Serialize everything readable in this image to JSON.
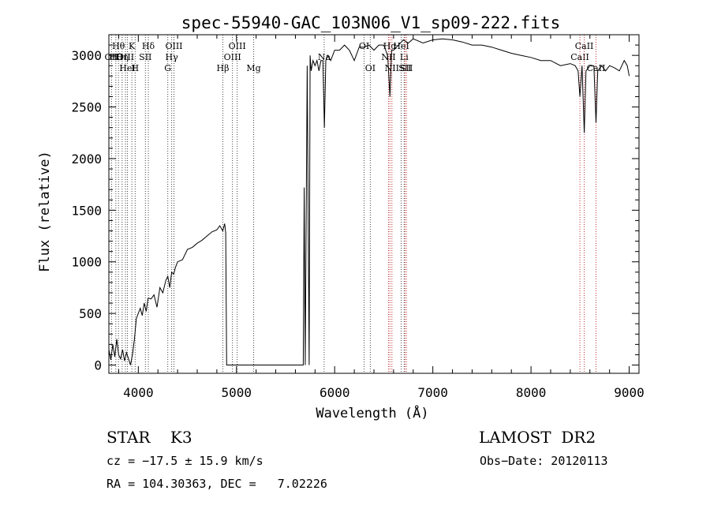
{
  "chart_data": {
    "type": "line",
    "title": "spec-55940-GAC_103N06_V1_sp09-222.fits",
    "xlabel": "Wavelength (Å)",
    "ylabel": "Flux (relative)",
    "xlim": [
      3700,
      9100
    ],
    "ylim": [
      -80,
      3200
    ],
    "x_ticks": [
      4000,
      5000,
      6000,
      7000,
      8000,
      9000
    ],
    "y_ticks": [
      0,
      500,
      1000,
      1500,
      2000,
      2500,
      3000
    ],
    "grid": false,
    "series": [
      {
        "x": [
          3700,
          3720,
          3740,
          3760,
          3780,
          3800,
          3820,
          3840,
          3860,
          3880,
          3900,
          3920,
          3940,
          3960,
          3980,
          4000,
          4020,
          4040,
          4060,
          4080,
          4100,
          4130,
          4160,
          4190,
          4220,
          4250,
          4280,
          4300,
          4320,
          4340,
          4360,
          4380,
          4400,
          4450,
          4500,
          4550,
          4600,
          4650,
          4700,
          4750,
          4800,
          4830,
          4860,
          4880,
          4890,
          4900,
          5000,
          5100,
          5200,
          5300,
          5400,
          5500,
          5600,
          5650,
          5680,
          5690,
          5700,
          5720,
          5740,
          5750,
          5760,
          5780,
          5800,
          5820,
          5840,
          5860,
          5880,
          5895,
          5910,
          5930,
          5960,
          6000,
          6050,
          6100,
          6150,
          6200,
          6250,
          6300,
          6350,
          6400,
          6450,
          6500,
          6540,
          6563,
          6580,
          6600,
          6650,
          6700,
          6750,
          6800,
          6900,
          7000,
          7100,
          7200,
          7300,
          7400,
          7500,
          7600,
          7700,
          7800,
          7900,
          8000,
          8100,
          8200,
          8300,
          8400,
          8450,
          8480,
          8498,
          8520,
          8542,
          8560,
          8600,
          8640,
          8662,
          8680,
          8720,
          8760,
          8800,
          8850,
          8900,
          8950,
          8980,
          9000
        ],
        "y": [
          150,
          50,
          200,
          80,
          250,
          100,
          60,
          150,
          40,
          120,
          60,
          0,
          100,
          250,
          450,
          500,
          550,
          480,
          600,
          520,
          650,
          640,
          680,
          560,
          750,
          700,
          820,
          860,
          750,
          900,
          880,
          950,
          1000,
          1020,
          1120,
          1140,
          1180,
          1210,
          1250,
          1290,
          1310,
          1350,
          1300,
          1370,
          1280,
          0,
          0,
          0,
          0,
          0,
          0,
          0,
          0,
          0,
          0,
          1720,
          0,
          2900,
          0,
          3000,
          2850,
          2950,
          2900,
          2950,
          2850,
          2950,
          2950,
          2300,
          2950,
          3000,
          2950,
          3050,
          3050,
          3100,
          3050,
          2950,
          3080,
          3080,
          3100,
          3050,
          3100,
          3100,
          3000,
          2600,
          3050,
          3050,
          3100,
          3150,
          3120,
          3160,
          3120,
          3150,
          3160,
          3150,
          3130,
          3100,
          3100,
          3080,
          3050,
          3020,
          3000,
          2980,
          2950,
          2950,
          2900,
          2920,
          2900,
          2850,
          2600,
          2900,
          2250,
          2850,
          2900,
          2900,
          2350,
          2850,
          2900,
          2850,
          2900,
          2880,
          2850,
          2950,
          2900,
          2800
        ],
        "color": "#000000"
      }
    ],
    "lines": [
      {
        "x": 3727,
        "row": 1,
        "label": "OII",
        "color": "#000000"
      },
      {
        "x": 3771,
        "row": 1,
        "label": "Hθ",
        "color": "#000000"
      },
      {
        "x": 3798,
        "row": 0,
        "label": "Hθ",
        "color": "#000000"
      },
      {
        "x": 3835,
        "row": 1,
        "label": "Hη",
        "color": "#000000"
      },
      {
        "x": 3869,
        "row": 1,
        "label": "OIII",
        "color": "#000000"
      },
      {
        "x": 3889,
        "row": 2,
        "label": "HeI",
        "color": "#000000"
      },
      {
        "x": 3934,
        "row": 0,
        "label": "K",
        "color": "#000000"
      },
      {
        "x": 3968,
        "row": 2,
        "label": "H",
        "color": "#000000"
      },
      {
        "x": 4072,
        "row": 1,
        "label": "SII",
        "color": "#000000"
      },
      {
        "x": 4102,
        "row": 0,
        "label": "Hδ",
        "color": "#000000"
      },
      {
        "x": 4300,
        "row": 2,
        "label": "G",
        "color": "#000000"
      },
      {
        "x": 4340,
        "row": 1,
        "label": "Hγ",
        "color": "#000000"
      },
      {
        "x": 4363,
        "row": 0,
        "label": "OIII",
        "color": "#000000"
      },
      {
        "x": 4861,
        "row": 2,
        "label": "Hβ",
        "color": "#000000"
      },
      {
        "x": 4959,
        "row": 1,
        "label": "OIII",
        "color": "#000000"
      },
      {
        "x": 5007,
        "row": 0,
        "label": "OIII",
        "color": "#000000"
      },
      {
        "x": 5175,
        "row": 2,
        "label": "Mg",
        "color": "#000000"
      },
      {
        "x": 5893,
        "row": 1,
        "label": "Na",
        "color": "#000000"
      },
      {
        "x": 6300,
        "row": 0,
        "label": "OI",
        "color": "#000000"
      },
      {
        "x": 6363,
        "row": 2,
        "label": "OI",
        "color": "#000000"
      },
      {
        "x": 6548,
        "row": 1,
        "label": "NII",
        "color": "#000000"
      },
      {
        "x": 6563,
        "row": 0,
        "label": "Hα",
        "color": "#000000"
      },
      {
        "x": 6583,
        "row": 2,
        "label": "NII",
        "color": "#000000"
      },
      {
        "x": 6678,
        "row": 0,
        "label": "HeI",
        "color": "#000000"
      },
      {
        "x": 6708,
        "row": 1,
        "label": "Li",
        "color": "#000000"
      },
      {
        "x": 6716,
        "row": 2,
        "label": "SII",
        "color": "#000000"
      },
      {
        "x": 6731,
        "row": 2,
        "label": "SII",
        "color": "#000000"
      },
      {
        "x": 8498,
        "row": 1,
        "label": "CaII",
        "color": "#000000"
      },
      {
        "x": 8542,
        "row": 0,
        "label": "CaII",
        "color": "#000000"
      },
      {
        "x": 8662,
        "row": 2,
        "label": "CaII",
        "color": "#000000"
      }
    ],
    "line_colors": {
      "black": "#000000",
      "red": "#c03030"
    }
  },
  "info": {
    "object": "STAR    K3",
    "survey": "LAMOST  DR2",
    "cz": "cz = −17.5 ± 15.9 km/s",
    "obsdate": "Obs−Date: 20120113",
    "radec": "RA = 104.30363, DEC =   7.02226"
  }
}
